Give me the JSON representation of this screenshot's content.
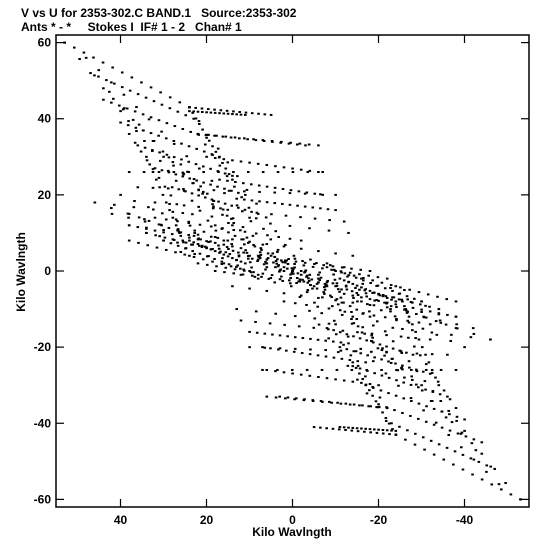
{
  "title_line1": "V vs U for 2353-302.C BAND.1   Source:2353-302",
  "title_line2": "Ants * - *     Stokes I  IF# 1 - 2   Chan# 1",
  "chart_data": {
    "type": "scatter",
    "title": "V vs U for 2353-302.C BAND.1   Source:2353-302",
    "subtitle": "Ants * - *     Stokes I  IF# 1 - 2   Chan# 1",
    "xlabel": "Kilo Wavlngth",
    "ylabel": "Kilo Wavlngth",
    "xlim": [
      55,
      -55
    ],
    "ylim": [
      -62,
      62
    ],
    "xticks": [
      40,
      20,
      0,
      -20,
      -40
    ],
    "xtick_labels": [
      "40",
      "20",
      "0",
      "-20",
      "-40"
    ],
    "yticks": [
      60,
      40,
      20,
      0,
      -20,
      -40,
      -60
    ],
    "ytick_labels": [
      "60",
      "40",
      "20",
      "0",
      "-20",
      "-40",
      "-60"
    ],
    "grid": false,
    "marker_color": "#000000",
    "tracks": [
      {
        "start": [
          53,
          60
        ],
        "end": [
          24,
          43
        ]
      },
      {
        "start": [
          47,
          52
        ],
        "end": [
          23,
          40
        ]
      },
      {
        "start": [
          44,
          45
        ],
        "end": [
          20,
          35
        ]
      },
      {
        "start": [
          40,
          39
        ],
        "end": [
          17,
          30
        ]
      },
      {
        "start": [
          36,
          33
        ],
        "end": [
          14,
          25
        ]
      },
      {
        "start": [
          32,
          27
        ],
        "end": [
          11,
          20
        ]
      },
      {
        "start": [
          28,
          22
        ],
        "end": [
          8,
          15
        ]
      },
      {
        "start": [
          24,
          42
        ],
        "end": [
          11,
          41
        ]
      },
      {
        "start": [
          22,
          36
        ],
        "end": [
          -6,
          33
        ]
      },
      {
        "start": [
          20,
          30
        ],
        "end": [
          -6,
          26
        ]
      },
      {
        "start": [
          17,
          24
        ],
        "end": [
          -7,
          20
        ]
      },
      {
        "start": [
          13,
          19
        ],
        "end": [
          -10,
          16
        ]
      },
      {
        "start": [
          46,
          18
        ],
        "end": [
          -13,
          10
        ]
      },
      {
        "start": [
          42,
          15
        ],
        "end": [
          -8,
          2
        ]
      },
      {
        "start": [
          38,
          12
        ],
        "end": [
          -14,
          4
        ]
      },
      {
        "start": [
          34,
          10
        ],
        "end": [
          -6,
          -1
        ]
      },
      {
        "start": [
          30,
          8
        ],
        "end": [
          -12,
          1
        ]
      },
      {
        "start": [
          26,
          5
        ],
        "end": [
          -16,
          -2
        ]
      },
      {
        "start": [
          22,
          2
        ],
        "end": [
          -6,
          -3
        ]
      },
      {
        "start": [
          18,
          0
        ],
        "end": [
          -10,
          -4
        ]
      },
      {
        "start": [
          24,
          43
        ],
        "end": [
          -5,
          -4
        ]
      },
      {
        "start": [
          0,
          0
        ],
        "end": [
          -22,
          -36
        ]
      },
      {
        "start": [
          0,
          0
        ],
        "end": [
          -30,
          -30
        ]
      },
      {
        "start": [
          2,
          1
        ],
        "end": [
          -40,
          -20
        ]
      },
      {
        "start": [
          4,
          1
        ],
        "end": [
          -46,
          -18
        ]
      },
      {
        "start": [
          2,
          0
        ],
        "end": [
          -18,
          -12
        ]
      },
      {
        "start": [
          -8,
          -3
        ],
        "end": [
          -38,
          -15
        ]
      },
      {
        "start": [
          -6,
          -2
        ],
        "end": [
          -34,
          -10
        ]
      },
      {
        "start": [
          -8,
          1
        ],
        "end": [
          -30,
          -8
        ]
      },
      {
        "start": [
          -11,
          -2
        ],
        "end": [
          -24,
          -8
        ]
      },
      {
        "start": [
          -10,
          0
        ],
        "end": [
          -38,
          -8
        ]
      },
      {
        "start": [
          -12,
          -6
        ],
        "end": [
          -38,
          -12
        ]
      },
      {
        "start": [
          2,
          -8
        ],
        "end": [
          -32,
          -14
        ]
      },
      {
        "start": [
          12,
          -13
        ],
        "end": [
          -32,
          -18
        ]
      },
      {
        "start": [
          10,
          -20
        ],
        "end": [
          -36,
          -22
        ]
      },
      {
        "start": [
          7,
          -26
        ],
        "end": [
          -38,
          -26
        ]
      },
      {
        "start": [
          3,
          -33
        ],
        "end": [
          -22,
          -36
        ]
      },
      {
        "start": [
          -5,
          -41
        ],
        "end": [
          -24,
          -43
        ]
      },
      {
        "start": [
          -8,
          -4
        ],
        "end": [
          -53,
          -60
        ]
      },
      {
        "start": [
          -10,
          -14
        ],
        "end": [
          -48,
          -56
        ]
      },
      {
        "start": [
          -14,
          -12
        ],
        "end": [
          -44,
          -48
        ]
      },
      {
        "start": [
          -16,
          -8
        ],
        "end": [
          -40,
          -42
        ]
      },
      {
        "start": [
          -20,
          -6
        ],
        "end": [
          -38,
          -36
        ]
      },
      {
        "start": [
          -24,
          -4
        ],
        "end": [
          -34,
          -30
        ]
      },
      {
        "start": [
          -14,
          -24
        ],
        "end": [
          -24,
          -43
        ]
      },
      {
        "start": [
          -6,
          -3
        ],
        "end": [
          -26,
          -28
        ]
      }
    ],
    "points_per_track": 14
  }
}
